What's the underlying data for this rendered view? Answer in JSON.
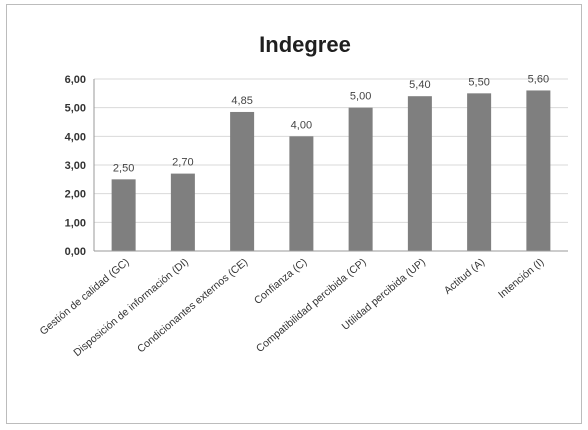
{
  "chart_data": {
    "type": "bar",
    "title": "Indegree",
    "categories": [
      "Gestión de calidad (GC)",
      "Disposición de información (DI)",
      "Condicionantes externos (CE)",
      "Confianza (C)",
      "Compatibilidad percibida (CP)",
      "Utilidad percibida (UP)",
      "Actitud (A)",
      "Intención (I)"
    ],
    "values": [
      2.5,
      2.7,
      4.85,
      4.0,
      5.0,
      5.4,
      5.5,
      5.6
    ],
    "value_labels": [
      "2,50",
      "2,70",
      "4,85",
      "4,00",
      "5,00",
      "5,40",
      "5,50",
      "5,60"
    ],
    "ylim": [
      0,
      6
    ],
    "yticks": [
      0,
      1,
      2,
      3,
      4,
      5,
      6
    ],
    "ytick_labels": [
      "0,00",
      "1,00",
      "2,00",
      "3,00",
      "4,00",
      "5,00",
      "6,00"
    ],
    "xlabel": "",
    "ylabel": "",
    "grid": true,
    "legend": "none",
    "colors": {
      "bar": "#7f7f7f",
      "grid": "#d9d9d9",
      "axis": "#9a9a9a"
    }
  }
}
